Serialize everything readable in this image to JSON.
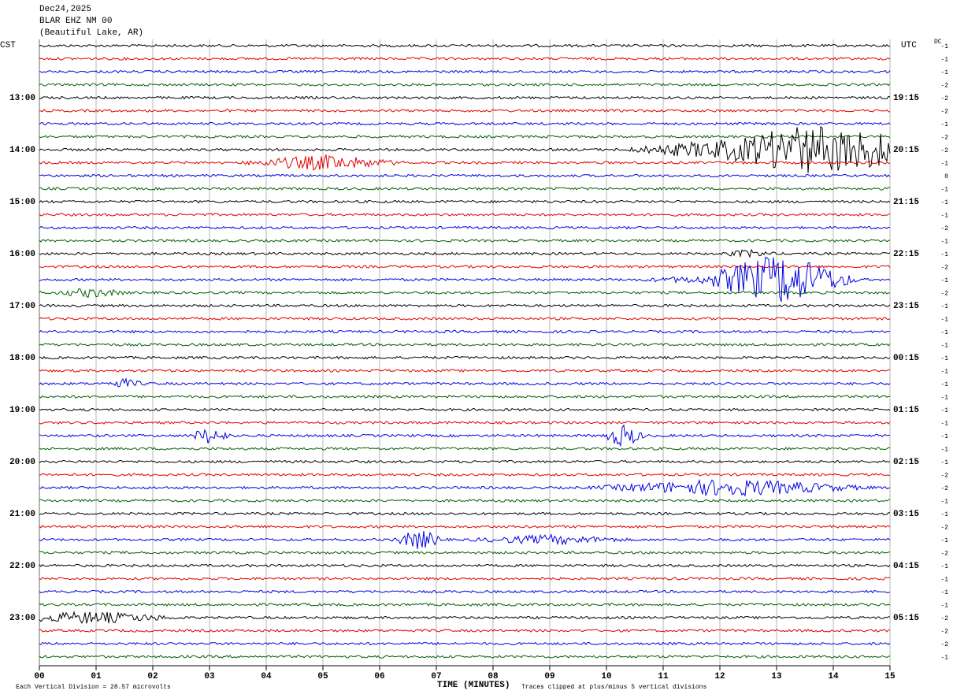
{
  "header": {
    "date": "Dec24,2025",
    "station": "BLAR EHZ NM 00",
    "location": "(Beautiful Lake, AR)"
  },
  "left_zone": "CST",
  "right_zone": "UTC",
  "dc_heading": "DC",
  "left_labels": [
    "13:00",
    "14:00",
    "15:00",
    "16:00",
    "17:00",
    "18:00",
    "19:00",
    "20:00",
    "21:00",
    "22:00",
    "23:00"
  ],
  "right_labels": [
    "19:15",
    "20:15",
    "21:15",
    "22:15",
    "23:15",
    "00:15",
    "01:15",
    "02:15",
    "03:15",
    "04:15",
    "05:15"
  ],
  "dc_offsets": [
    "-1",
    "-1",
    "-1",
    "-2",
    "-2",
    "-2",
    "-1",
    "-2",
    "-2",
    "-1",
    "0",
    "-1",
    "-1",
    "-1",
    "-2",
    "-1",
    "-1",
    "-2",
    "-1",
    "-2",
    "-1",
    "-1",
    "-1",
    "-1",
    "-1",
    "-1",
    "-1",
    "-1",
    "-1",
    "-1",
    "-1",
    "-1",
    "-1",
    "-2",
    "-2",
    "-1",
    "-1",
    "-2",
    "-1",
    "-2",
    "-1",
    "-1",
    "-1",
    "-1",
    "-2",
    "-2",
    "-2",
    "-1"
  ],
  "x_ticks": [
    "00",
    "01",
    "02",
    "03",
    "04",
    "05",
    "06",
    "07",
    "08",
    "09",
    "10",
    "11",
    "12",
    "13",
    "14",
    "15"
  ],
  "x_axis_label": "TIME (MINUTES)",
  "footer_left": "Each Vertical Division =   28.57 microvolts",
  "footer_right": "Traces clipped at plus/minus 5 vertical divisions"
}
